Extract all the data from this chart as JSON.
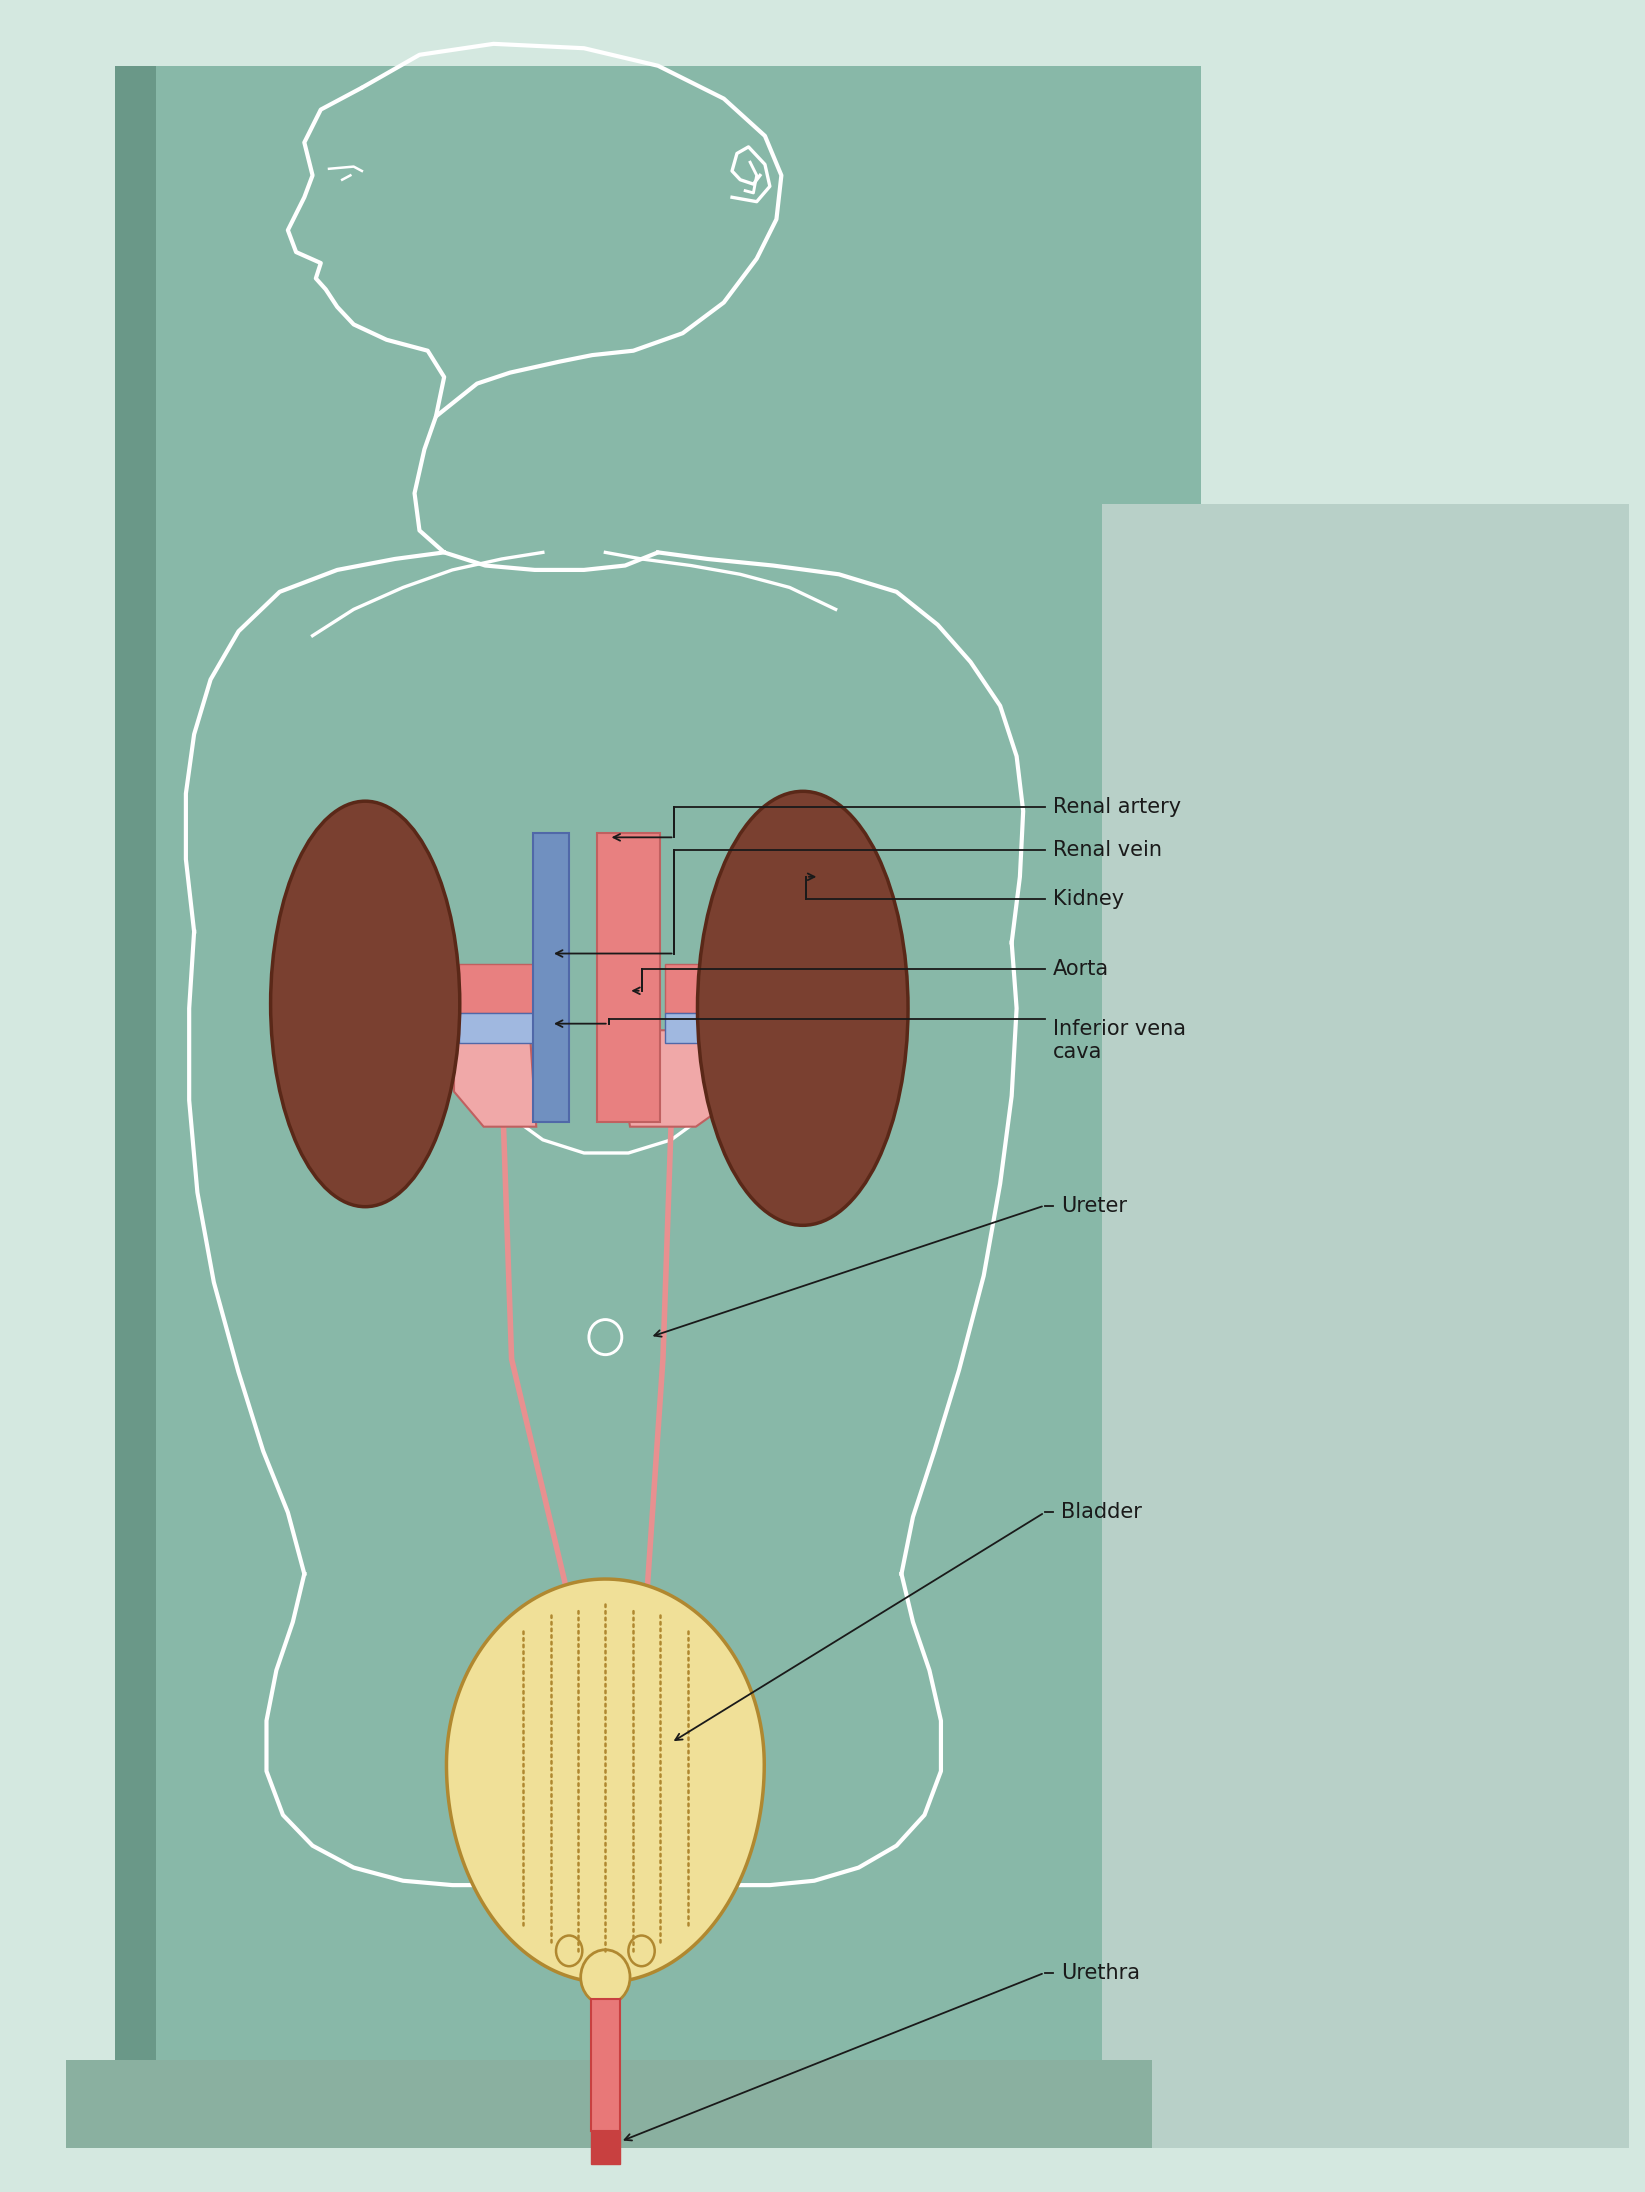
{
  "bg_outermost": "#d4e8e0",
  "bg_main": "#88b8a8",
  "bg_panel_light": "#a8c8bc",
  "bg_right_panel": "#b8d0c8",
  "body_outline_color": "#ffffff",
  "kidney_color": "#7a4030",
  "kidney_outline": "#5a2818",
  "aorta_color": "#e88080",
  "vena_cava_color": "#7090c0",
  "renal_artery_color": "#e88080",
  "renal_vein_color": "#90a8d8",
  "ureter_color": "#e89090",
  "bladder_fill": "#f0e098",
  "bladder_outline": "#b08830",
  "urethra_color": "#e87878",
  "urethra_dark": "#c84040",
  "annotation_color": "#1a1a1a",
  "annot_lw": 1.3,
  "label_fontsize": 15,
  "labels": {
    "renal_artery": "Renal artery",
    "renal_vein": "Renal vein",
    "kidney": "Kidney",
    "aorta": "Aorta",
    "inferior_vena_cava": "Inferior vena\ncava",
    "ureter": "Ureter",
    "bladder": "Bladder",
    "urethra": "Urethra"
  }
}
